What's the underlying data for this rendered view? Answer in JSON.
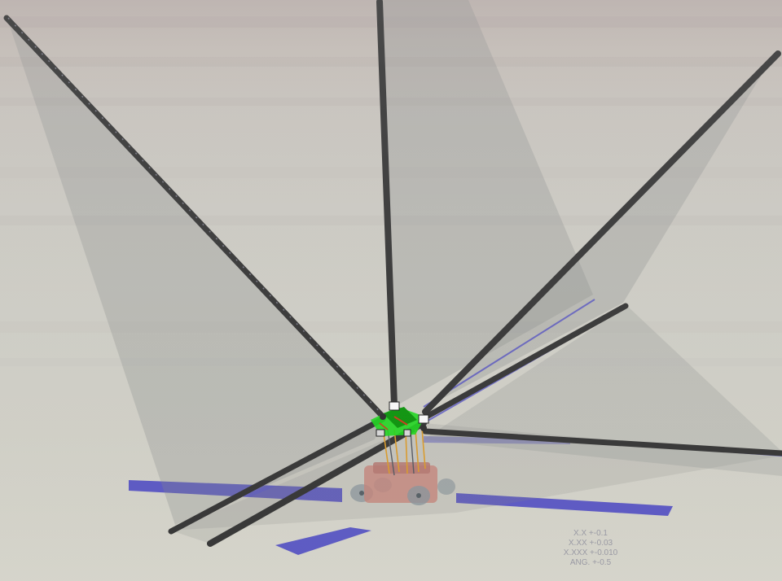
{
  "tolerance_block": {
    "lines": [
      "X.X +-0.1",
      "X.XX +-0.03",
      "X.XXX +-0.010",
      "ANG. +-0.5"
    ]
  },
  "colors": {
    "background": "#d6d5cc",
    "rod": "#3a3a3a",
    "panel": "#8a8c8c",
    "floor_strip": "#4b48c8",
    "hub": "#22dd22",
    "base_body": "#c98a80",
    "wheel": "#8f9aa0",
    "legs": "#e0a030"
  }
}
